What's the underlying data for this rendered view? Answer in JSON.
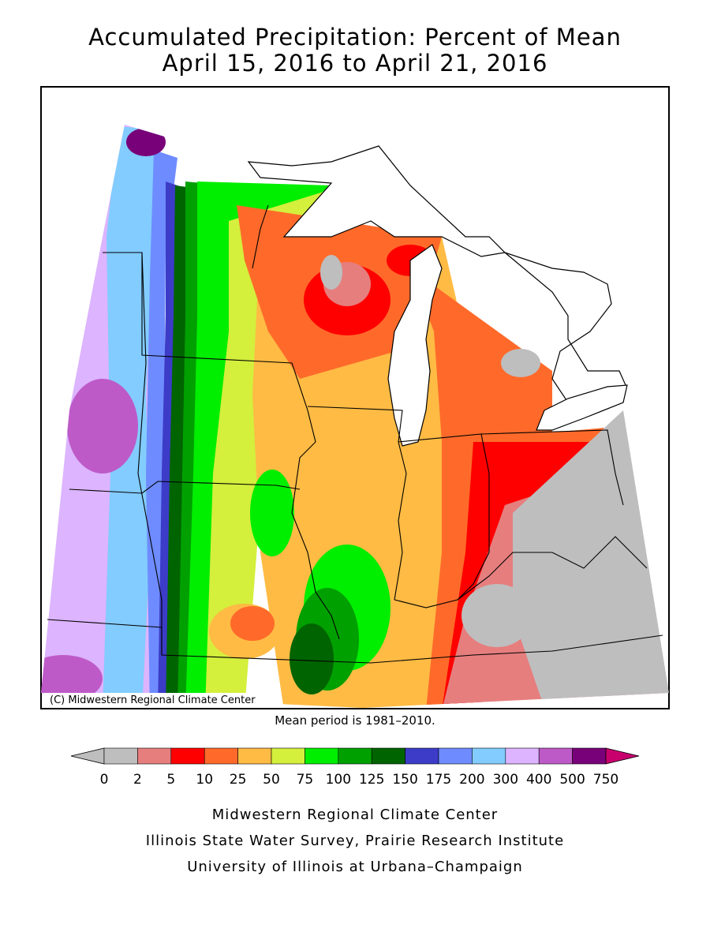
{
  "title_line1": "Accumulated Precipitation: Percent of Mean",
  "title_line2": "April 15, 2016 to April 21, 2016",
  "copyright": "(C) Midwestern Regional Climate Center",
  "mean_period": "Mean period is 1981–2010.",
  "legend": {
    "labels": [
      "0",
      "2",
      "5",
      "10",
      "25",
      "50",
      "75",
      "100",
      "125",
      "150",
      "175",
      "200",
      "300",
      "400",
      "500",
      "750"
    ],
    "colors": [
      "#bebebe",
      "#e67e7e",
      "#ff0000",
      "#ff6a2a",
      "#ffbb44",
      "#d4ef3c",
      "#00ee00",
      "#00a000",
      "#006400",
      "#3c3cc8",
      "#6e8cff",
      "#82ccff",
      "#dcb4ff",
      "#be5ac8",
      "#780078",
      "#c8006e"
    ]
  },
  "footer": {
    "line1": "Midwestern Regional Climate Center",
    "line2": "Illinois State Water Survey, Prairie Research Institute",
    "line3": "University of Illinois at Urbana–Champaign"
  }
}
